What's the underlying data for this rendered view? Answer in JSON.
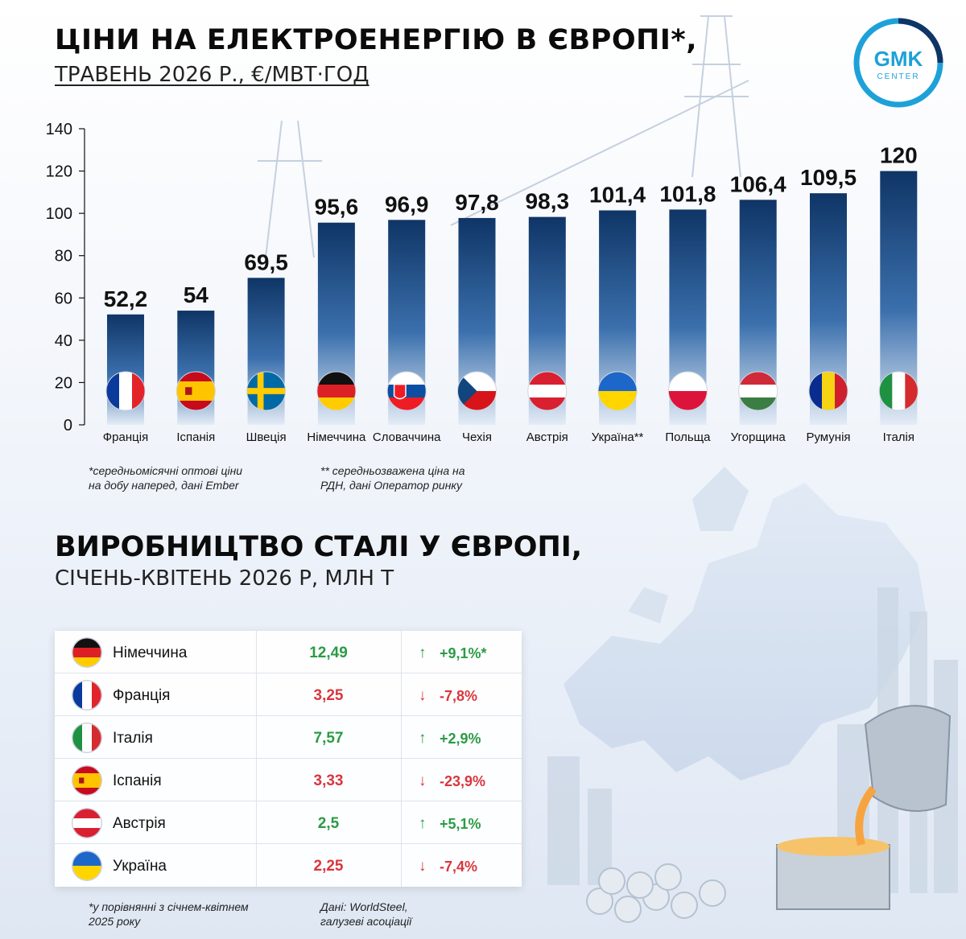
{
  "header": {
    "title": "ЦІНИ НА ЕЛЕКТРОЕНЕРГІЮ В ЄВРОПІ*,",
    "subtitle": "ТРАВЕНЬ 2026 Р., €/МВТ·ГОД"
  },
  "logo": {
    "line1": "GMK",
    "line2": "CENTER",
    "color": "#1da1d8"
  },
  "chart_data": {
    "type": "bar",
    "categories": [
      "Франція",
      "Іспанія",
      "Швеція",
      "Німеччина",
      "Словаччина",
      "Чехія",
      "Австрія",
      "Україна**",
      "Польща",
      "Угорщина",
      "Румунія",
      "Італія"
    ],
    "values": [
      52.2,
      54,
      69.5,
      95.6,
      96.9,
      97.8,
      98.3,
      101.4,
      101.8,
      106.4,
      109.5,
      120
    ],
    "value_labels": [
      "52,2",
      "54",
      "69,5",
      "95,6",
      "96,9",
      "97,8",
      "98,3",
      "101,4",
      "101,8",
      "106,4",
      "109,5",
      "120"
    ],
    "flags": [
      "fr",
      "es",
      "se",
      "de",
      "sk",
      "cz",
      "at",
      "ua",
      "pl",
      "hu",
      "ro",
      "it"
    ],
    "yticks": [
      0,
      20,
      40,
      60,
      80,
      100,
      120,
      140
    ],
    "ylim": [
      0,
      140
    ],
    "bar_color_top": "#0f3566",
    "bar_color_bottom": "#e4ecf6"
  },
  "notes": {
    "note1_line1": "*середньомісячні оптові ціни",
    "note1_line2": "на добу наперед, дані Ember",
    "note2_line1": "** середньозважена ціна на",
    "note2_line2": "РДН, дані Оператор ринку"
  },
  "section2": {
    "title": "ВИРОБНИЦТВО СТАЛІ У ЄВРОПІ,",
    "subtitle": "СІЧЕНЬ-КВІТЕНЬ 2026 Р, МЛН Т",
    "rows": [
      {
        "flag": "de",
        "country": "Німеччина",
        "value": "12,49",
        "arrow": "↑",
        "change": "+9,1%*",
        "trend": "up"
      },
      {
        "flag": "fr",
        "country": "Франція",
        "value": "3,25",
        "arrow": "↓",
        "change": "-7,8%",
        "trend": "down"
      },
      {
        "flag": "it",
        "country": "Італія",
        "value": "7,57",
        "arrow": "↑",
        "change": "+2,9%",
        "trend": "up"
      },
      {
        "flag": "es",
        "country": "Іспанія",
        "value": "3,33",
        "arrow": "↓",
        "change": "-23,9%",
        "trend": "down"
      },
      {
        "flag": "at",
        "country": "Австрія",
        "value": "2,5",
        "arrow": "↑",
        "change": "+5,1%",
        "trend": "up"
      },
      {
        "flag": "ua",
        "country": "Україна",
        "value": "2,25",
        "arrow": "↓",
        "change": "-7,4%",
        "trend": "down"
      }
    ],
    "footnote_line1": "*у порівнянні з січнем-квітнем",
    "footnote_line2": "2025 року",
    "source_line1": "Дані: WorldSteel,",
    "source_line2": "галузеві асоціації"
  },
  "watermark": "gmk.center"
}
